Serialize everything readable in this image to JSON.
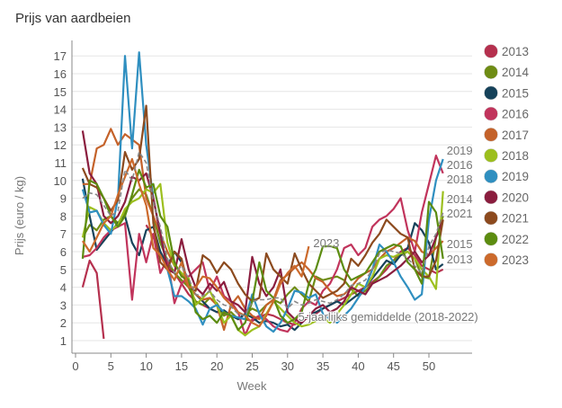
{
  "chart_data": {
    "type": "line",
    "title": "Prijs van aardbeien",
    "xlabel": "Week",
    "ylabel": "Prijs (euro / kg)",
    "xlim": [
      0,
      56
    ],
    "ylim": [
      0.3,
      17.8
    ],
    "xticks": [
      0,
      5,
      10,
      15,
      20,
      25,
      30,
      35,
      40,
      45,
      50
    ],
    "yticks": [
      1,
      2,
      3,
      4,
      5,
      6,
      7,
      8,
      9,
      10,
      11,
      12,
      13,
      14,
      15,
      16,
      17
    ],
    "grid": "horizontal",
    "legend_position": "right",
    "series": [
      {
        "name": "2013",
        "color": "#b5304e",
        "end_label": "2013",
        "values": [
          4.0,
          5.5,
          4.8,
          1.1,
          null,
          null,
          null,
          null,
          null,
          7.5,
          6.8,
          6.0,
          5.2,
          4.8,
          4.2,
          3.6,
          3.2,
          3.0,
          2.8,
          2.6,
          2.5,
          2.4,
          2.3,
          2.2,
          2.1,
          2.3,
          2.5,
          2.4,
          2.2,
          2.0,
          1.9,
          2.1,
          2.3,
          2.5,
          2.8,
          3.0,
          3.2,
          3.4,
          3.6,
          3.8,
          4.0,
          4.3,
          4.6,
          5.0,
          5.5,
          6.0,
          6.2,
          5.8,
          5.2,
          5.0,
          4.8,
          5.0
        ]
      },
      {
        "name": "2014",
        "color": "#6e8c14",
        "end_label": "2014",
        "values": [
          6.8,
          7.5,
          7.2,
          7.8,
          8.0,
          7.6,
          8.2,
          9.0,
          9.5,
          9.2,
          8.0,
          6.5,
          5.5,
          4.8,
          4.4,
          4.0,
          3.2,
          3.0,
          3.4,
          3.1,
          2.4,
          2.6,
          2.2,
          2.5,
          2.8,
          2.6,
          3.0,
          3.3,
          3.1,
          3.6,
          4.0,
          3.6,
          3.2,
          4.6,
          4.4,
          4.5,
          4.6,
          4.4,
          3.9,
          3.5,
          3.8,
          4.2,
          4.6,
          5.2,
          5.5,
          5.8,
          6.0,
          5.6,
          4.6,
          4.5,
          6.8,
          8.0
        ]
      },
      {
        "name": "2015",
        "color": "#16425a",
        "end_label": "2015",
        "values": [
          10.1,
          8.0,
          6.1,
          6.6,
          7.1,
          7.6,
          8.0,
          6.5,
          5.8,
          7.2,
          7.4,
          6.0,
          5.2,
          6.0,
          5.4,
          4.0,
          3.6,
          3.2,
          2.8,
          2.6,
          2.7,
          2.4,
          2.2,
          2.5,
          2.3,
          2.0,
          2.1,
          2.0,
          1.8,
          1.9,
          1.6,
          2.0,
          2.4,
          2.6,
          2.8,
          3.0,
          3.2,
          3.0,
          3.3,
          3.6,
          4.0,
          4.5,
          5.0,
          5.5,
          5.3,
          5.8,
          6.2,
          7.6,
          7.2,
          6.5,
          5.0,
          5.3
        ]
      },
      {
        "name": "2016",
        "color": "#c1345c",
        "end_label": "2016",
        "values": [
          5.7,
          5.8,
          6.2,
          6.8,
          7.2,
          7.4,
          7.6,
          3.3,
          7.0,
          5.4,
          7.0,
          4.8,
          5.6,
          3.1,
          4.2,
          4.6,
          5.0,
          5.4,
          3.8,
          4.6,
          3.5,
          3.2,
          2.6,
          1.3,
          2.2,
          2.4,
          2.2,
          1.8,
          1.6,
          1.5,
          2.0,
          2.8,
          3.2,
          3.0,
          3.8,
          4.2,
          5.0,
          6.2,
          6.4,
          5.8,
          6.2,
          7.4,
          7.8,
          8.0,
          8.4,
          9.0,
          7.2,
          6.0,
          8.2,
          9.8,
          11.4,
          10.4
        ]
      },
      {
        "name": "2017",
        "color": "#c4622a",
        "values": [
          9.8,
          9.8,
          11.8,
          12.0,
          12.9,
          12.0,
          12.6,
          12.3,
          12.0,
          9.0,
          8.0,
          7.0,
          6.0,
          5.2,
          4.8,
          4.0,
          3.6,
          3.3,
          3.4,
          3.0,
          1.6,
          3.0,
          3.5,
          2.8,
          2.4,
          2.2,
          3.0,
          3.3,
          4.4,
          4.7,
          5.1,
          5.4,
          5.0,
          4.5,
          4.3,
          3.8,
          3.5,
          3.6,
          4.0,
          4.5,
          4.8,
          5.0,
          5.6,
          6.0,
          6.2,
          6.5,
          6.8,
          6.6,
          6.0,
          5.8,
          6.2,
          6.6
        ]
      },
      {
        "name": "2018",
        "color": "#9cbf1e",
        "end_label": "2018",
        "values": [
          6.8,
          8.5,
          8.3,
          7.6,
          7.2,
          7.5,
          8.4,
          8.8,
          9.0,
          9.5,
          9.3,
          9.8,
          6.5,
          5.2,
          4.8,
          4.5,
          3.0,
          3.4,
          3.8,
          3.0,
          2.0,
          2.4,
          1.6,
          1.3,
          1.6,
          1.8,
          2.5,
          3.2,
          2.8,
          2.4,
          2.0,
          1.8,
          1.9,
          2.1,
          2.3,
          2.0,
          2.5,
          3.0,
          3.6,
          4.2,
          4.0,
          4.6,
          5.6,
          5.8,
          5.7,
          5.9,
          6.0,
          5.6,
          5.0,
          4.6,
          3.9,
          9.4
        ]
      },
      {
        "name": "2019",
        "color": "#2f8fc0",
        "end_label": "2019",
        "values": [
          9.5,
          8.2,
          8.3,
          7.5,
          7.0,
          9.0,
          17.0,
          11.8,
          17.2,
          12.0,
          9.0,
          7.0,
          5.0,
          3.5,
          3.5,
          3.2,
          2.8,
          1.9,
          2.8,
          3.0,
          2.6,
          2.4,
          2.3,
          2.2,
          3.6,
          2.5,
          1.8,
          1.5,
          2.0,
          2.8,
          3.8,
          3.7,
          3.4,
          3.6,
          2.5,
          2.2,
          2.0,
          2.4,
          2.8,
          3.4,
          4.0,
          5.0,
          6.4,
          6.0,
          5.4,
          4.6,
          4.0,
          3.3,
          3.6,
          7.8,
          10.0,
          11.2
        ]
      },
      {
        "name": "2020",
        "color": "#8a1d3e",
        "values": [
          12.8,
          10.4,
          9.8,
          8.0,
          7.6,
          8.0,
          8.8,
          10.2,
          10.0,
          10.4,
          9.0,
          7.0,
          5.0,
          4.8,
          6.7,
          5.0,
          4.0,
          3.6,
          4.2,
          3.8,
          4.3,
          3.2,
          3.0,
          2.6,
          5.7,
          4.2,
          3.5,
          4.0,
          5.0,
          2.6,
          2.2,
          2.0,
          2.4,
          2.8,
          3.0,
          2.6,
          2.8,
          3.2,
          4.0,
          3.8,
          3.6,
          4.2,
          4.4,
          4.6,
          4.9,
          5.2,
          5.6,
          6.0,
          5.4,
          5.8,
          6.8,
          7.8
        ]
      },
      {
        "name": "2021",
        "color": "#8c4a1e",
        "end_label": "2021",
        "values": [
          10.7,
          9.8,
          9.6,
          9.0,
          8.3,
          8.9,
          11.6,
          10.6,
          11.2,
          14.2,
          7.6,
          5.4,
          5.0,
          6.0,
          5.6,
          4.0,
          3.8,
          5.8,
          5.5,
          4.8,
          5.4,
          5.0,
          4.2,
          3.6,
          3.2,
          3.4,
          5.9,
          5.0,
          4.6,
          4.2,
          5.9,
          5.0,
          4.2,
          3.8,
          3.4,
          3.6,
          3.8,
          4.2,
          5.6,
          5.2,
          5.8,
          6.5,
          7.0,
          7.8,
          7.4,
          7.0,
          6.8,
          5.0,
          4.6,
          4.6,
          5.5,
          7.8
        ]
      },
      {
        "name": "2022",
        "color": "#5c8c10",
        "values": [
          5.6,
          10.0,
          9.8,
          9.0,
          8.0,
          7.4,
          8.0,
          9.2,
          10.6,
          9.6,
          9.8,
          8.0,
          7.4,
          5.4,
          4.6,
          4.4,
          2.6,
          2.2,
          2.4,
          2.0,
          2.6,
          2.4,
          1.6,
          2.0,
          3.2,
          5.4,
          3.8,
          3.4,
          2.4,
          2.0,
          2.2,
          2.6,
          4.2,
          5.0,
          6.3,
          6.3,
          6.2,
          5.0,
          4.4,
          4.6,
          4.8,
          5.4,
          6.0,
          6.2,
          6.4,
          6.3,
          5.4,
          5.0,
          4.2,
          8.8,
          8.2,
          5.6
        ]
      },
      {
        "name": "2023",
        "color": "#cc6a2c",
        "end_label": "2023",
        "values": [
          6.6,
          6.0,
          6.8,
          7.6,
          8.0,
          9.2,
          10.2,
          11.2,
          9.8,
          8.6,
          6.2,
          5.8,
          5.0,
          4.4,
          5.4,
          4.0,
          4.0,
          4.6,
          4.5,
          4.0,
          3.4,
          3.0,
          2.6,
          2.4,
          2.0,
          1.8,
          2.4,
          3.2,
          4.2,
          4.8,
          5.2,
          4.6,
          6.3
        ]
      }
    ],
    "average": {
      "label": "5-jaarlijks gemiddelde (2018-2022)",
      "color": "#888888",
      "values": [
        9.0,
        9.3,
        9.2,
        8.6,
        8.0,
        8.3,
        10.6,
        10.0,
        11.6,
        11.0,
        8.8,
        7.4,
        5.6,
        4.8,
        5.2,
        4.5,
        3.6,
        3.5,
        3.8,
        3.3,
        3.0,
        2.9,
        2.5,
        2.4,
        3.2,
        3.3,
        3.3,
        3.4,
        3.4,
        2.8,
        3.2,
        3.0,
        3.1,
        3.3,
        3.2,
        3.1,
        3.3,
        3.6,
        4.1,
        4.2,
        4.4,
        5.0,
        5.9,
        6.1,
        6.0,
        5.9,
        5.6,
        5.2,
        4.8,
        6.3,
        7.0,
        8.2
      ]
    }
  }
}
